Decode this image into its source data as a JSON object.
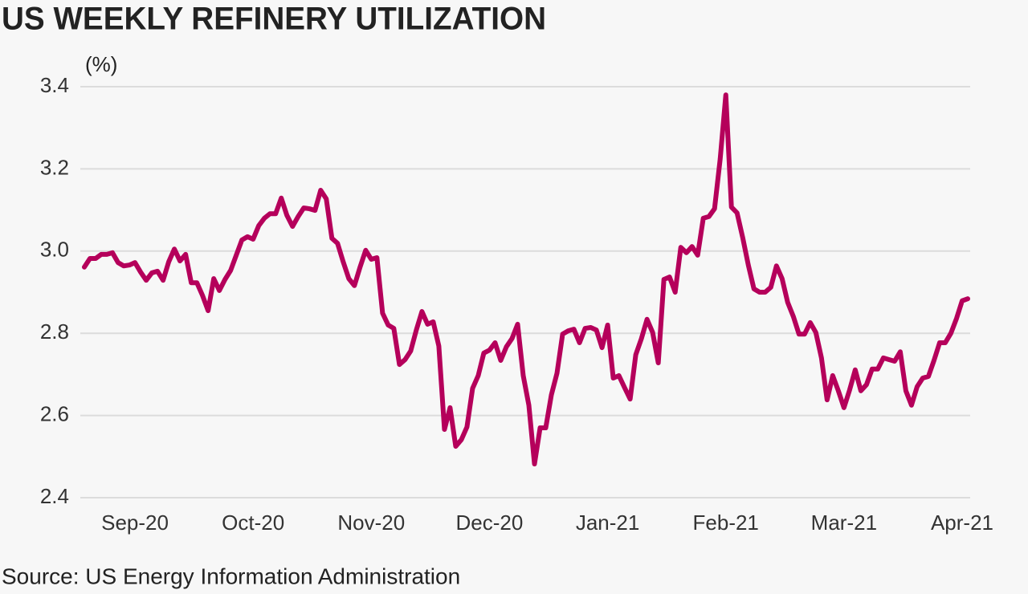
{
  "chart_data": {
    "type": "line",
    "title": "US WEEKLY REFINERY UTILIZATION",
    "y_label": "(%)",
    "source": "Source: US Energy Information Administration",
    "categories": [
      null,
      null,
      null,
      null,
      null,
      null,
      null,
      null,
      null,
      "Sep-20",
      null,
      null,
      null,
      null,
      null,
      null,
      null,
      null,
      null,
      null,
      null,
      null,
      null,
      null,
      null,
      null,
      null,
      null,
      null,
      null,
      "Oct-20",
      null,
      null,
      null,
      null,
      null,
      null,
      null,
      null,
      null,
      null,
      null,
      null,
      null,
      null,
      null,
      null,
      null,
      null,
      null,
      null,
      "Nov-20",
      null,
      null,
      null,
      null,
      null,
      null,
      null,
      null,
      null,
      null,
      null,
      null,
      null,
      null,
      null,
      null,
      null,
      null,
      null,
      null,
      "Dec-20",
      null,
      null,
      null,
      null,
      null,
      null,
      null,
      null,
      null,
      null,
      null,
      null,
      null,
      null,
      null,
      null,
      null,
      null,
      null,
      null,
      "Jan-21",
      null,
      null,
      null,
      null,
      null,
      null,
      null,
      null,
      null,
      null,
      null,
      null,
      null,
      null,
      null,
      null,
      null,
      null,
      null,
      null,
      "Feb-21",
      null,
      null,
      null,
      null,
      null,
      null,
      null,
      null,
      null,
      null,
      null,
      null,
      null,
      null,
      null,
      null,
      null,
      null,
      null,
      null,
      "Mar-21",
      null,
      null,
      null,
      null,
      null,
      null,
      null,
      null,
      null,
      null,
      null,
      null,
      null,
      null,
      null,
      null,
      null,
      null,
      null,
      null,
      "Apr-21",
      null
    ],
    "values": [
      2.961,
      2.982,
      2.982,
      2.992,
      2.992,
      2.996,
      2.972,
      2.964,
      2.966,
      2.972,
      2.949,
      2.929,
      2.947,
      2.951,
      2.929,
      2.974,
      3.005,
      2.976,
      2.992,
      2.923,
      2.923,
      2.892,
      2.855,
      2.933,
      2.904,
      2.931,
      2.953,
      2.99,
      3.027,
      3.035,
      3.029,
      3.062,
      3.08,
      3.091,
      3.091,
      3.129,
      3.087,
      3.06,
      3.084,
      3.105,
      3.103,
      3.099,
      3.148,
      3.127,
      3.031,
      3.019,
      2.974,
      2.933,
      2.916,
      2.961,
      3.002,
      2.98,
      2.984,
      2.849,
      2.82,
      2.812,
      2.724,
      2.736,
      2.757,
      2.808,
      2.853,
      2.822,
      2.828,
      2.769,
      2.566,
      2.619,
      2.525,
      2.541,
      2.572,
      2.666,
      2.697,
      2.752,
      2.759,
      2.777,
      2.734,
      2.767,
      2.787,
      2.822,
      2.697,
      2.625,
      2.482,
      2.57,
      2.57,
      2.65,
      2.703,
      2.798,
      2.806,
      2.81,
      2.777,
      2.812,
      2.814,
      2.808,
      2.765,
      2.82,
      2.691,
      2.697,
      2.668,
      2.64,
      2.748,
      2.787,
      2.834,
      2.802,
      2.728,
      2.931,
      2.937,
      2.9,
      3.009,
      2.996,
      3.011,
      2.99,
      3.08,
      3.084,
      3.103,
      3.224,
      3.38,
      3.107,
      3.093,
      3.033,
      2.966,
      2.908,
      2.9,
      2.9,
      2.912,
      2.964,
      2.933,
      2.875,
      2.841,
      2.798,
      2.798,
      2.826,
      2.802,
      2.74,
      2.638,
      2.697,
      2.66,
      2.619,
      2.662,
      2.711,
      2.66,
      2.675,
      2.713,
      2.713,
      2.74,
      2.736,
      2.732,
      2.755,
      2.66,
      2.625,
      2.67,
      2.691,
      2.695,
      2.734,
      2.777,
      2.777,
      2.8,
      2.836,
      2.879,
      2.884
    ],
    "color": "#b5005b",
    "ylim": [
      2.4,
      3.4
    ],
    "yticks": [
      2.4,
      2.6,
      2.8,
      {
        "value": 3,
        "label": "3.0"
      },
      3.2,
      3.4
    ],
    "grid": true
  }
}
